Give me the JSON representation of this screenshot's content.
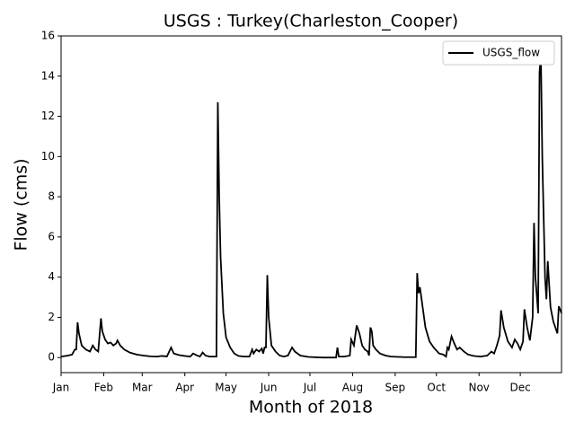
{
  "chart_data": {
    "type": "line",
    "title": "USGS : Turkey(Charleston_Cooper)",
    "xlabel": "Month of 2018",
    "ylabel": "Flow (cms)",
    "legend": "upper right",
    "xlim": [
      0,
      364
    ],
    "ylim": [
      -0.75,
      16
    ],
    "xticks": [
      {
        "value": 0,
        "label": "Jan"
      },
      {
        "value": 31,
        "label": "Feb"
      },
      {
        "value": 59,
        "label": "Mar"
      },
      {
        "value": 90,
        "label": "Apr"
      },
      {
        "value": 120,
        "label": "May"
      },
      {
        "value": 151,
        "label": "Jun"
      },
      {
        "value": 181,
        "label": "Jul"
      },
      {
        "value": 212,
        "label": "Aug"
      },
      {
        "value": 243,
        "label": "Sep"
      },
      {
        "value": 273,
        "label": "Oct"
      },
      {
        "value": 304,
        "label": "Nov"
      },
      {
        "value": 334,
        "label": "Dec"
      }
    ],
    "yticks": [
      0,
      2,
      4,
      6,
      8,
      10,
      12,
      14,
      16
    ],
    "x": [
      0,
      5,
      8,
      10,
      11,
      12,
      13,
      15,
      18,
      21,
      23,
      25,
      27,
      29,
      30,
      32,
      34,
      36,
      38,
      40,
      41,
      43,
      46,
      50,
      55,
      60,
      65,
      70,
      73,
      77,
      80,
      82,
      86,
      90,
      94,
      96,
      99,
      101,
      103,
      105,
      108,
      113,
      114,
      115,
      116,
      118,
      120,
      123,
      126,
      129,
      133,
      137,
      139,
      140,
      142,
      144,
      146,
      147,
      148,
      149,
      150,
      151,
      153,
      156,
      159,
      162,
      165,
      168,
      170,
      174,
      180,
      190,
      200,
      201,
      202,
      206,
      210,
      211,
      213,
      215,
      217,
      219,
      221,
      223,
      224,
      225,
      226,
      227,
      229,
      232,
      236,
      240,
      250,
      258,
      259,
      260,
      261,
      263,
      265,
      268,
      271,
      275,
      278,
      280,
      281,
      282,
      284,
      286,
      288,
      290,
      293,
      296,
      300,
      305,
      310,
      313,
      315,
      317,
      319,
      320,
      322,
      325,
      328,
      330,
      332,
      334,
      336,
      337,
      339,
      341,
      343,
      344,
      345,
      347,
      348,
      349,
      350,
      351,
      352,
      353,
      354,
      356,
      358,
      360,
      361,
      362,
      364
    ],
    "series": [
      {
        "name": "USGS_flow",
        "color": "#000000",
        "values": [
          0.05,
          0.1,
          0.15,
          0.4,
          0.4,
          1.75,
          1.2,
          0.6,
          0.4,
          0.3,
          0.6,
          0.4,
          0.3,
          1.95,
          1.3,
          0.9,
          0.7,
          0.75,
          0.6,
          0.7,
          0.85,
          0.6,
          0.4,
          0.25,
          0.15,
          0.1,
          0.06,
          0.05,
          0.08,
          0.06,
          0.5,
          0.2,
          0.12,
          0.08,
          0.05,
          0.2,
          0.1,
          0.05,
          0.25,
          0.1,
          0.05,
          0.05,
          12.7,
          8,
          5,
          2.2,
          1,
          0.5,
          0.2,
          0.08,
          0.05,
          0.05,
          0.4,
          0.2,
          0.4,
          0.3,
          0.45,
          0.2,
          0.5,
          0.5,
          4.1,
          2,
          0.6,
          0.3,
          0.1,
          0.05,
          0.1,
          0.5,
          0.3,
          0.1,
          0.03,
          0,
          0,
          0.5,
          0.05,
          0.05,
          0.1,
          0.9,
          0.6,
          1.6,
          1.2,
          0.6,
          0.4,
          0.3,
          0.1,
          1.5,
          1.3,
          0.6,
          0.4,
          0.2,
          0.1,
          0.05,
          0.02,
          0.02,
          4.2,
          3.2,
          3.5,
          2.5,
          1.5,
          0.8,
          0.5,
          0.2,
          0.15,
          0.05,
          0.5,
          0.4,
          1.05,
          0.7,
          0.4,
          0.5,
          0.3,
          0.15,
          0.08,
          0.05,
          0.1,
          0.3,
          0.2,
          0.6,
          1.1,
          2.35,
          1.5,
          0.8,
          0.5,
          0.9,
          0.7,
          0.4,
          0.8,
          2.4,
          1.5,
          0.85,
          2,
          6.7,
          4,
          2.2,
          14.2,
          15,
          10,
          7,
          4,
          2.9,
          4.8,
          2.5,
          1.8,
          1.4,
          1.2,
          2.55,
          2.2
        ]
      }
    ]
  }
}
